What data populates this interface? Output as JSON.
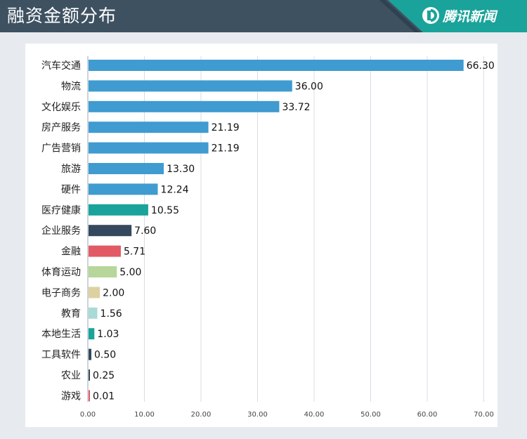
{
  "header": {
    "title": "融资金额分布",
    "brand": "腾讯新闻",
    "brand_icon": "tencent-news-logo-icon",
    "bg_color": "#3e5161",
    "accent_color": "#1aa39a"
  },
  "chart_data": {
    "type": "bar",
    "orientation": "horizontal",
    "categories": [
      "汽车交通",
      "物流",
      "文化娱乐",
      "房产服务",
      "广告营销",
      "旅游",
      "硬件",
      "医疗健康",
      "企业服务",
      "金融",
      "体育运动",
      "电子商务",
      "教育",
      "本地生活",
      "工具软件",
      "农业",
      "游戏"
    ],
    "values": [
      66.3,
      36.0,
      33.72,
      21.19,
      21.19,
      13.3,
      12.24,
      10.55,
      7.6,
      5.71,
      5.0,
      2.0,
      1.56,
      1.03,
      0.5,
      0.25,
      0.01
    ],
    "value_labels": [
      "66.30",
      "36.00",
      "33.72",
      "21.19",
      "21.19",
      "13.30",
      "12.24",
      "10.55",
      "7.60",
      "5.71",
      "5.00",
      "2.00",
      "1.56",
      "1.03",
      "0.50",
      "0.25",
      "0.01"
    ],
    "colors": [
      "#3f9bd0",
      "#3f9bd0",
      "#3f9bd0",
      "#3f9bd0",
      "#3f9bd0",
      "#3f9bd0",
      "#3f9bd0",
      "#1aa39a",
      "#34495e",
      "#e15a64",
      "#b6d69a",
      "#ddd1a0",
      "#a8dbd8",
      "#1aa39a",
      "#34495e",
      "#34495e",
      "#e15a64"
    ],
    "xlim": [
      0,
      70
    ],
    "xticks": [
      "0.00",
      "10.00",
      "20.00",
      "30.00",
      "40.00",
      "50.00",
      "60.00",
      "70.00"
    ],
    "title": "",
    "xlabel": "",
    "ylabel": "",
    "grid": true
  }
}
